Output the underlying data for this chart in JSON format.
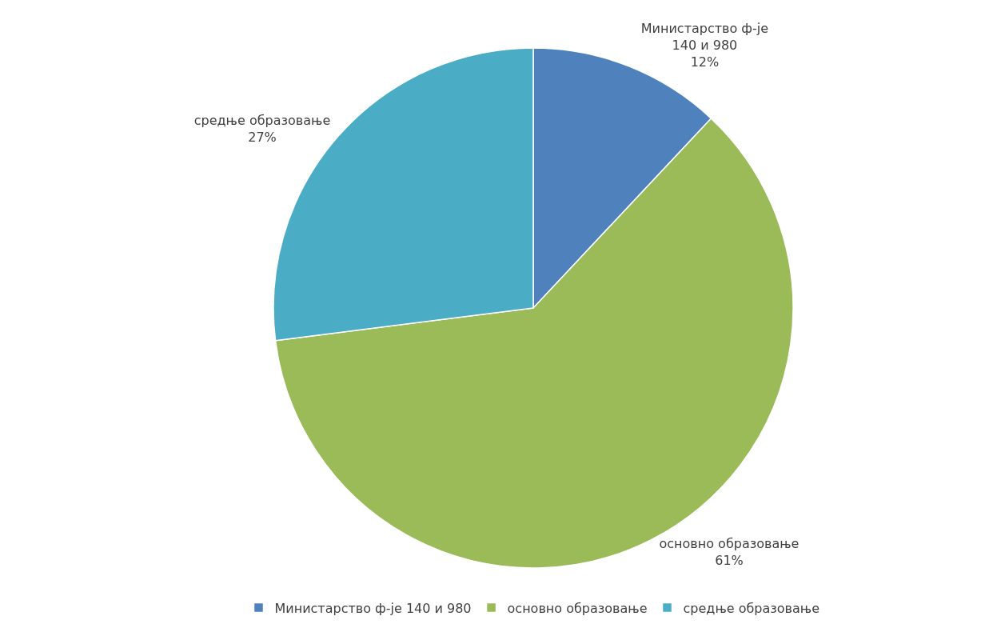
{
  "chart_data": {
    "type": "pie",
    "categories": [
      "Министарство ф-је 140 и 980",
      "основно образовање",
      "средње образовање"
    ],
    "values": [
      12,
      61,
      27
    ],
    "value_labels": [
      "12%",
      "61%",
      "27%"
    ],
    "colors": [
      "#4f81bd",
      "#9bbb59",
      "#4bacc6"
    ],
    "legend": "bottom"
  }
}
